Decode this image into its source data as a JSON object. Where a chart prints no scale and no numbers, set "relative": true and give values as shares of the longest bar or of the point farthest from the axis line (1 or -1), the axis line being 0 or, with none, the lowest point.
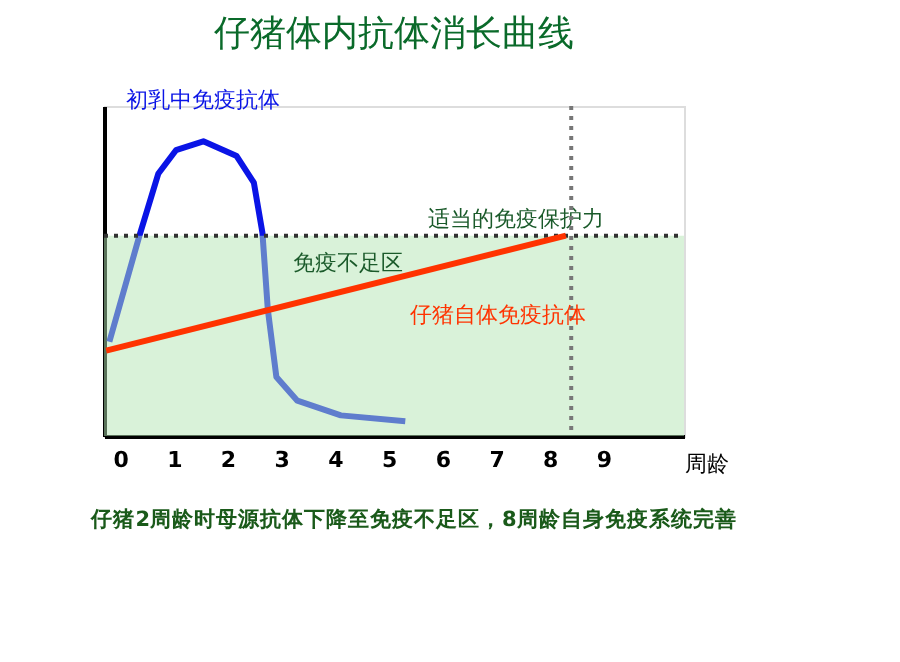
{
  "chart_data": {
    "type": "line",
    "title": "仔猪体内抗体消长曲线",
    "xlabel": "周龄",
    "relative": true,
    "xlim": [
      -0.3,
      10.5
    ],
    "xticks": [
      0,
      1,
      2,
      3,
      4,
      5,
      6,
      7,
      8,
      9
    ],
    "series": [
      {
        "name": "初乳中免疫抗体",
        "color": "#0a14e6",
        "x": [
          -0.2,
          0.36,
          0.71,
          1.04,
          1.55,
          2.17,
          2.49,
          2.65,
          2.75,
          2.91,
          3.3,
          4.11,
          5.31
        ],
        "values": [
          0.32,
          0.68,
          0.89,
          0.97,
          1,
          0.95,
          0.86,
          0.69,
          0.43,
          0.2,
          0.12,
          0.07,
          0.05
        ]
      },
      {
        "name": "仔猪自体免疫抗体",
        "color": "#ff3300",
        "x": [
          -0.26,
          8.3
        ],
        "values": [
          0.29,
          0.68
        ]
      }
    ],
    "ref_lines": [
      {
        "axis": "y",
        "value": 0.68,
        "label": "适当的免疫保护力",
        "color": "#333333",
        "line_style": "dotted"
      },
      {
        "axis": "x",
        "value": 8.4,
        "color": "#777777",
        "line_style": "dotted"
      }
    ],
    "bands": [
      {
        "axis": "y",
        "from": 0,
        "to": 0.68,
        "label": "免疫不足区",
        "color": "#b4e6b4"
      }
    ],
    "annotations": [
      "仔猪2周龄时母源抗体下降至免疫不足区，8周龄自身免疫系统完善"
    ],
    "grid": false,
    "marker": "none",
    "line_style": "solid"
  }
}
